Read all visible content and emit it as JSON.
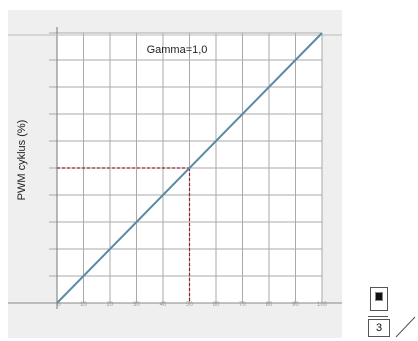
{
  "chart_data": {
    "type": "line",
    "title": "Gamma=1,0",
    "xlabel": "",
    "ylabel": "PWM cyklus (%)",
    "xlim": [
      0,
      100
    ],
    "ylim": [
      0,
      100
    ],
    "x_ticks": [
      "0",
      "10",
      "20",
      "30",
      "40",
      "50",
      "60",
      "70",
      "80",
      "90",
      "100"
    ],
    "grid": true,
    "series": [
      {
        "color": "#5b8aa6",
        "x": [
          0,
          100
        ],
        "y": [
          0,
          100
        ]
      }
    ],
    "guides": {
      "color": "#9b1c2a",
      "x": 50,
      "y": 50
    }
  },
  "widget": {
    "value": "3"
  },
  "colors": {
    "grid": "#aaaaaa",
    "panel": "#efefef",
    "plot_bg": "#ffffff"
  }
}
